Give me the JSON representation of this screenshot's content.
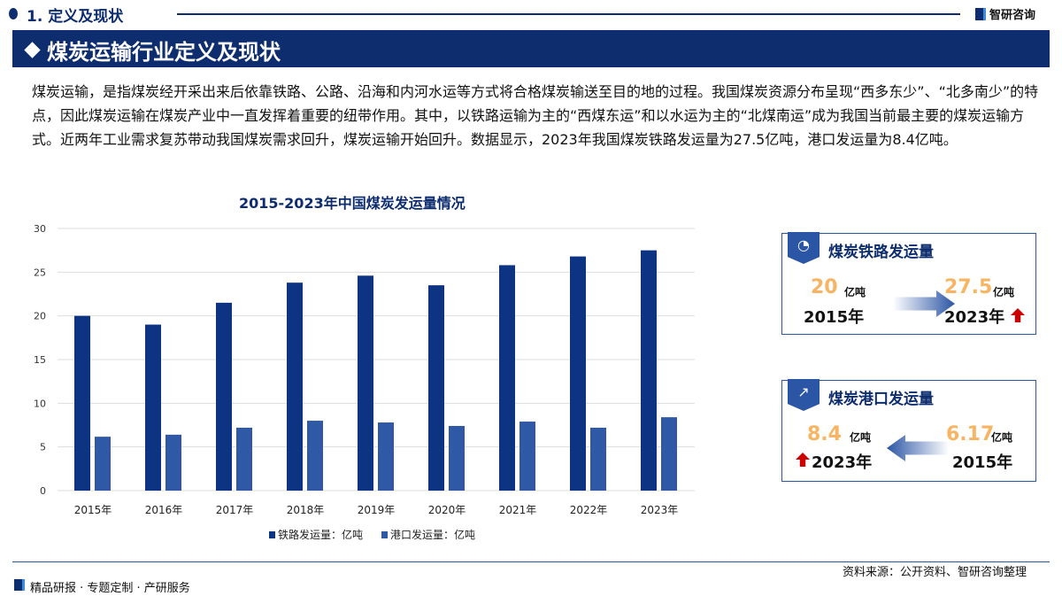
{
  "header": {
    "section": "1. 定义及现状",
    "logo_text": "智研咨询",
    "banner_title": "煤炭运输行业定义及现状"
  },
  "paragraph": "煤炭运输，是指煤炭经开采出来后依靠铁路、公路、沿海和内河水运等方式将合格煤炭输送至目的地的过程。我国煤炭资源分布呈现“西多东少”、“北多南少”的特点，因此煤炭运输在煤炭产业中一直发挥着重要的纽带作用。其中，以铁路运输为主的“西煤东运”和以水运为主的“北煤南运”成为我国当前最主要的煤炭运输方式。近两年工业需求复苏带动我国煤炭需求回升，煤炭运输开始回升。数据显示，2023年我国煤炭铁路发运量为27.5亿吨，港口发运量为8.4亿吨。",
  "chart_data": {
    "type": "bar",
    "title": "2015-2023年中国煤炭发运量情况",
    "categories": [
      "2015年",
      "2016年",
      "2017年",
      "2018年",
      "2019年",
      "2020年",
      "2021年",
      "2022年",
      "2023年"
    ],
    "series": [
      {
        "name": "铁路发运量：亿吨",
        "values": [
          20,
          19,
          21.5,
          23.8,
          24.6,
          23.5,
          25.8,
          26.8,
          27.5
        ],
        "color": "#0d3482"
      },
      {
        "name": "港口发运量：亿吨",
        "values": [
          6.17,
          6.4,
          7.2,
          8.0,
          7.8,
          7.4,
          7.9,
          7.2,
          8.4
        ],
        "color": "#2f58a6"
      }
    ],
    "ylim": [
      0,
      30
    ],
    "yticks": [
      "0",
      "5",
      "10",
      "15",
      "20",
      "25",
      "30"
    ],
    "grid": true,
    "legend": "bottom"
  },
  "cards": [
    {
      "title": "煤炭铁路发运量",
      "icon": "pie-chart-icon",
      "from_value": "20",
      "from_unit": "亿吨",
      "from_year": "2015年",
      "to_value": "27.5",
      "to_unit": "亿吨",
      "to_year": "2023年"
    },
    {
      "title": "煤炭港口发运量",
      "icon": "growth-chart-icon",
      "from_value": "6.17",
      "from_unit": "亿吨",
      "from_year": "2015年",
      "to_value": "8.4",
      "to_unit": "亿吨",
      "to_year": "2023年"
    }
  ],
  "footer": {
    "left": "精品研报 · 专题定制 · 产研服务",
    "right": "资料来源：公开资料、智研咨询整理"
  },
  "colors": {
    "brand": "#0d2d6f",
    "highlight": "#f7b463",
    "up": "#cc0000"
  }
}
